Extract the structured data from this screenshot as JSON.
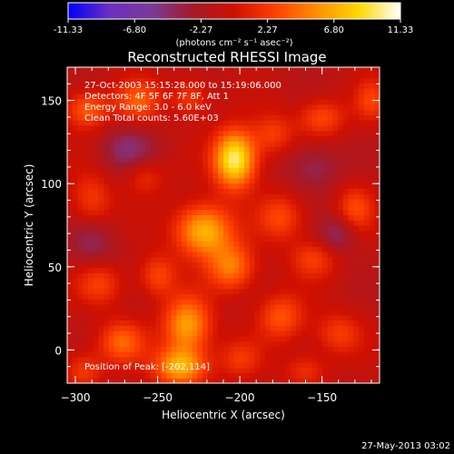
{
  "chart_data": {
    "type": "heatmap",
    "title": "Reconstructed RHESSI Image",
    "xlabel": "Heliocentric X (arcsec)",
    "ylabel": "Heliocentric Y (arcsec)",
    "xlim": [
      -305,
      -115
    ],
    "ylim": [
      -20,
      170
    ],
    "x_ticks": [
      -300,
      -250,
      -200,
      -150
    ],
    "y_ticks": [
      0,
      50,
      100,
      150
    ],
    "colorbar": {
      "ticks": [
        "-11.33",
        "-6.80",
        "-2.27",
        "2.27",
        "6.80",
        "11.33"
      ],
      "range": [
        -11.33,
        11.33
      ],
      "unit_label": "(photons cm⁻² s⁻¹ asec⁻²)",
      "stops": [
        "#0000ff",
        "#6b2fbf",
        "#7a3a9a",
        "#a31a2a",
        "#d01000",
        "#ff4000",
        "#ff9000",
        "#ffd800",
        "#ffffff"
      ]
    },
    "annotations": {
      "time": "27-Oct-2003 15:15:28.000 to 15:19:06.000",
      "detectors": "Detectors: 4F 5F 6F 7F 8F, Att 1",
      "energy": "Energy Range: 3.0 - 6.0 keV",
      "clean": "Clean    Total counts: 5.60E+03",
      "peak": "Position of Peak: [-202,114]"
    },
    "peak": {
      "x": -202,
      "y": 114
    },
    "blobs": [
      {
        "x": -203,
        "y": 115,
        "amp": 11.3,
        "sx": 9,
        "sy": 12
      },
      {
        "x": -222,
        "y": 72,
        "amp": 8.5,
        "sx": 12,
        "sy": 11
      },
      {
        "x": -205,
        "y": 50,
        "amp": 6.0,
        "sx": 10,
        "sy": 10
      },
      {
        "x": -232,
        "y": 15,
        "amp": 7.5,
        "sx": 10,
        "sy": 12
      },
      {
        "x": -236,
        "y": -10,
        "amp": 8.0,
        "sx": 11,
        "sy": 8
      },
      {
        "x": -272,
        "y": 5,
        "amp": 5.0,
        "sx": 10,
        "sy": 9
      },
      {
        "x": -293,
        "y": 145,
        "amp": 5.0,
        "sx": 9,
        "sy": 8
      },
      {
        "x": -262,
        "y": 150,
        "amp": 4.5,
        "sx": 10,
        "sy": 9
      },
      {
        "x": -230,
        "y": 152,
        "amp": 3.5,
        "sx": 8,
        "sy": 8
      },
      {
        "x": -180,
        "y": 130,
        "amp": 3.5,
        "sx": 9,
        "sy": 9
      },
      {
        "x": -150,
        "y": 140,
        "amp": 4.0,
        "sx": 10,
        "sy": 8
      },
      {
        "x": -120,
        "y": 150,
        "amp": 3.5,
        "sx": 7,
        "sy": 9
      },
      {
        "x": -290,
        "y": 90,
        "amp": 3.5,
        "sx": 9,
        "sy": 12
      },
      {
        "x": -258,
        "y": 105,
        "amp": 3.0,
        "sx": 9,
        "sy": 8
      },
      {
        "x": -175,
        "y": 80,
        "amp": 4.0,
        "sx": 10,
        "sy": 10
      },
      {
        "x": -155,
        "y": 55,
        "amp": 3.5,
        "sx": 10,
        "sy": 8
      },
      {
        "x": -130,
        "y": 85,
        "amp": 4.0,
        "sx": 8,
        "sy": 10
      },
      {
        "x": -285,
        "y": 40,
        "amp": 3.5,
        "sx": 10,
        "sy": 9
      },
      {
        "x": -250,
        "y": 45,
        "amp": 4.0,
        "sx": 8,
        "sy": 9
      },
      {
        "x": -175,
        "y": 20,
        "amp": 4.5,
        "sx": 10,
        "sy": 10
      },
      {
        "x": -140,
        "y": 10,
        "amp": 3.5,
        "sx": 10,
        "sy": 9
      },
      {
        "x": -200,
        "y": -5,
        "amp": 3.0,
        "sx": 9,
        "sy": 8
      },
      {
        "x": -160,
        "y": -12,
        "amp": 3.0,
        "sx": 9,
        "sy": 7
      },
      {
        "x": -295,
        "y": -12,
        "amp": 3.5,
        "sx": 8,
        "sy": 8
      },
      {
        "x": -268,
        "y": 120,
        "amp": -3.5,
        "sx": 12,
        "sy": 10
      },
      {
        "x": -155,
        "y": 110,
        "amp": -3.0,
        "sx": 12,
        "sy": 10
      },
      {
        "x": -140,
        "y": 70,
        "amp": -3.5,
        "sx": 8,
        "sy": 8
      },
      {
        "x": -290,
        "y": 65,
        "amp": -3.0,
        "sx": 10,
        "sy": 10
      }
    ]
  },
  "footer": {
    "date": "27-May-2013 03:02"
  }
}
